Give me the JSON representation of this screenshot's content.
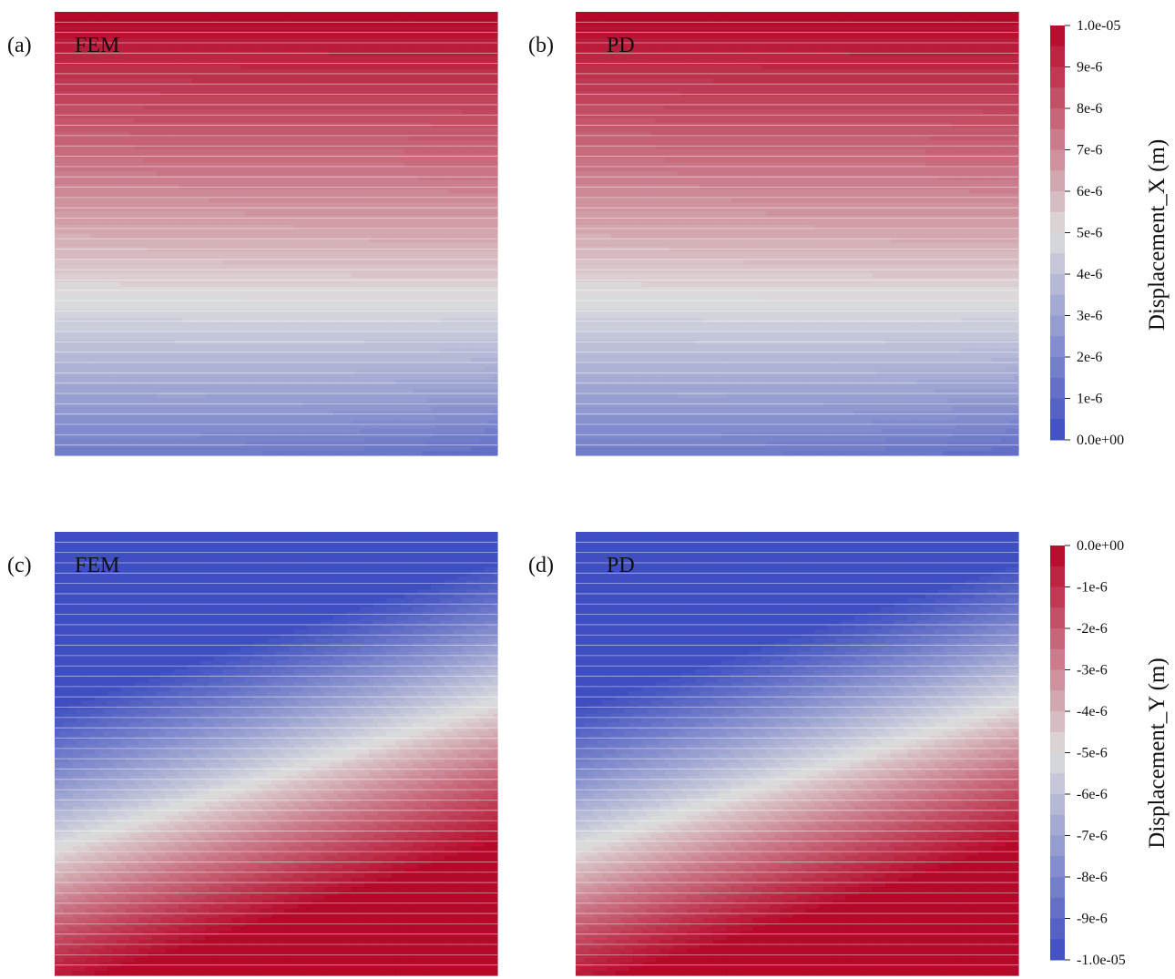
{
  "chart_data": [
    {
      "type": "heatmap",
      "panel_label": "(a)",
      "method": "FEM",
      "quantity": "Displacement_X (m)",
      "field": "x",
      "vmin": 0,
      "vmax": 1e-05,
      "levels": 44
    },
    {
      "type": "heatmap",
      "panel_label": "(b)",
      "method": "PD",
      "quantity": "Displacement_X (m)",
      "field": "x",
      "vmin": 0,
      "vmax": 1e-05,
      "levels": 44
    },
    {
      "type": "heatmap",
      "panel_label": "(c)",
      "method": "FEM",
      "quantity": "Displacement_Y (m)",
      "field": "y",
      "vmin": -1e-05,
      "vmax": 0,
      "levels": 44
    },
    {
      "type": "heatmap",
      "panel_label": "(d)",
      "method": "PD",
      "quantity": "Displacement_Y (m)",
      "field": "y",
      "vmin": -1e-05,
      "vmax": 0,
      "levels": 44
    }
  ],
  "colorbars": [
    {
      "title": "Displacement_X (m)",
      "ticks": [
        "1.0e-05",
        "9e-6",
        "8e-6",
        "7e-6",
        "6e-6",
        "5e-6",
        "4e-6",
        "3e-6",
        "2e-6",
        "1e-6",
        "0.0e+00"
      ]
    },
    {
      "title": "Displacement_Y (m)",
      "ticks": [
        "0.0e+00",
        "-1e-6",
        "-2e-6",
        "-3e-6",
        "-4e-6",
        "-5e-6",
        "-6e-6",
        "-7e-6",
        "-8e-6",
        "-9e-6",
        "-1.0e-05"
      ]
    }
  ],
  "colors": {
    "cool": "#3b4cc0",
    "mid": "#dddddd",
    "warm": "#b40426"
  }
}
